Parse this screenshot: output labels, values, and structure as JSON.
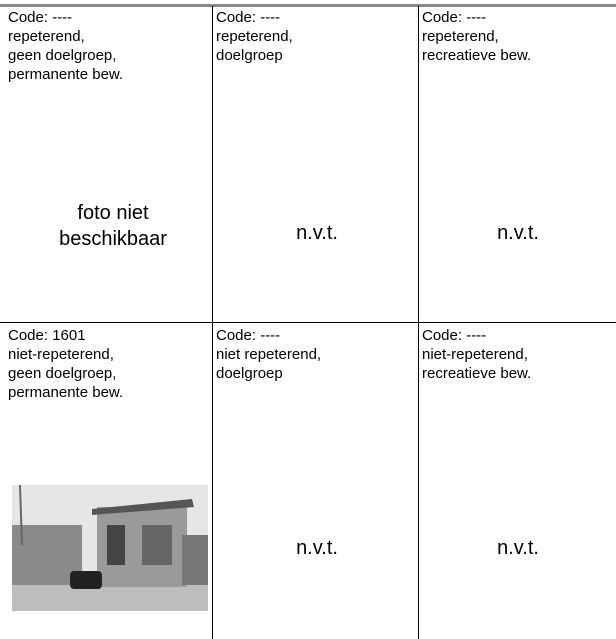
{
  "table": {
    "rows": [
      [
        {
          "lines": [
            "Code: ----",
            "repeterend,",
            "geen doelgroep,",
            "permanente bew."
          ],
          "content": "foto niet beschikbaar"
        },
        {
          "lines": [
            "Code: ----",
            "repeterend,",
            "doelgroep"
          ],
          "content": "n.v.t."
        },
        {
          "lines": [
            "Code: ----",
            "repeterend,",
            "recreatieve bew."
          ],
          "content": "n.v.t."
        }
      ],
      [
        {
          "lines": [
            "Code: 1601",
            "niet-repeterend,",
            "geen doelgroep,",
            "permanente bew."
          ]
        },
        {
          "lines": [
            "Code: ----",
            "niet repeterend,",
            "doelgroep"
          ],
          "content": "n.v.t."
        },
        {
          "lines": [
            "Code: ----",
            "niet-repeterend,",
            "recreatieve bew."
          ],
          "content": "n.v.t."
        }
      ]
    ]
  }
}
